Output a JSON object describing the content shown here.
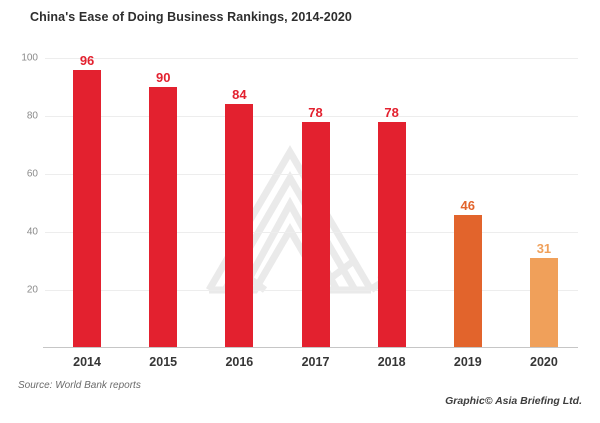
{
  "title": "China's Ease of Doing Business Rankings, 2014-2020",
  "footer": {
    "source": "Source: World Bank reports",
    "credit": "Graphic© Asia Briefing Ltd."
  },
  "watermark_icon": "asia-briefing-logo-watermark",
  "chart_data": {
    "type": "bar",
    "title": "China's Ease of Doing Business Rankings, 2014-2020",
    "categories": [
      "2014",
      "2015",
      "2016",
      "2017",
      "2018",
      "2019",
      "2020"
    ],
    "values": [
      96,
      90,
      84,
      78,
      78,
      46,
      31
    ],
    "bar_colors": [
      "#E3212F",
      "#E3212F",
      "#E3212F",
      "#E3212F",
      "#E3212F",
      "#E2642C",
      "#F0A05A"
    ],
    "xlabel": "",
    "ylabel": "",
    "ylim": [
      0,
      100
    ],
    "yticks": [
      20,
      40,
      60,
      80,
      100
    ],
    "grid": true,
    "legend": false,
    "colors": {
      "red_bar": "#E3212F",
      "orange_bar_2019": "#E2642C",
      "light_orange_bar_2020": "#F0A05A",
      "gridline": "#EDEDED",
      "axis_line": "#C6C6C6",
      "tick_text": "#8A8A8A",
      "title_text": "#2E2E2E"
    }
  }
}
